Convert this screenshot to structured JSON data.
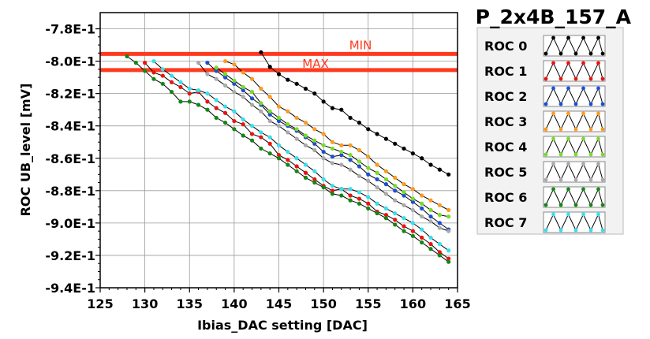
{
  "chart_data": {
    "type": "line",
    "title": "P_2x4B_157_A",
    "xlabel": "Ibias_DAC setting [DAC]",
    "ylabel": "ROC UB_level [mV]",
    "xlim": [
      125,
      165
    ],
    "ylim": [
      -0.94,
      -0.77
    ],
    "x_ticks": [
      125,
      130,
      135,
      140,
      145,
      150,
      155,
      160,
      165
    ],
    "x_tick_labels": [
      "125",
      "130",
      "135",
      "140",
      "145",
      "150",
      "155",
      "160",
      "165"
    ],
    "y_ticks": [
      -0.78,
      -0.8,
      -0.82,
      -0.84,
      -0.86,
      -0.88,
      -0.9,
      -0.92,
      -0.94
    ],
    "y_tick_labels": [
      "-7.8E-1",
      "-8.0E-1",
      "-8.2E-1",
      "-8.4E-1",
      "-8.6E-1",
      "-8.8E-1",
      "-9.0E-1",
      "-9.2E-1",
      "-9.4E-1"
    ],
    "grid": true,
    "reference_lines": [
      {
        "name": "MIN",
        "y": -0.7955,
        "color": "#ff3a1f"
      },
      {
        "name": "MAX",
        "y": -0.8055,
        "color": "#ff3a1f"
      }
    ],
    "series": [
      {
        "name": "ROC 0",
        "color": "#000000",
        "x": [
          143,
          144,
          145,
          146,
          147,
          148,
          149,
          150,
          151,
          152,
          153,
          154,
          155,
          156,
          157,
          158,
          159,
          160,
          161,
          162,
          163,
          164
        ],
        "y": [
          -0.7945,
          -0.8035,
          -0.808,
          -0.8115,
          -0.814,
          -0.817,
          -0.82,
          -0.825,
          -0.829,
          -0.83,
          -0.835,
          -0.838,
          -0.842,
          -0.845,
          -0.848,
          -0.851,
          -0.854,
          -0.857,
          -0.86,
          -0.864,
          -0.867,
          -0.87
        ]
      },
      {
        "name": "ROC 1",
        "color": "#ee1111",
        "x": [
          130,
          131,
          132,
          133,
          134,
          135,
          136,
          137,
          138,
          139,
          140,
          141,
          142,
          143,
          144,
          145,
          146,
          147,
          148,
          149,
          150,
          151,
          152,
          153,
          154,
          155,
          156,
          157,
          158,
          159,
          160,
          161,
          162,
          163,
          164
        ],
        "y": [
          -0.801,
          -0.807,
          -0.809,
          -0.813,
          -0.816,
          -0.82,
          -0.819,
          -0.825,
          -0.829,
          -0.832,
          -0.837,
          -0.839,
          -0.845,
          -0.847,
          -0.851,
          -0.858,
          -0.861,
          -0.865,
          -0.869,
          -0.873,
          -0.877,
          -0.88,
          -0.879,
          -0.883,
          -0.885,
          -0.888,
          -0.893,
          -0.895,
          -0.898,
          -0.902,
          -0.905,
          -0.909,
          -0.913,
          -0.918,
          -0.922
        ]
      },
      {
        "name": "ROC 2",
        "color": "#1a4fd6",
        "x": [
          137,
          138,
          139,
          140,
          141,
          142,
          143,
          144,
          145,
          146,
          147,
          148,
          149,
          150,
          151,
          152,
          153,
          154,
          155,
          156,
          157,
          158,
          159,
          160,
          161,
          162,
          163,
          164
        ],
        "y": [
          -0.801,
          -0.806,
          -0.81,
          -0.814,
          -0.818,
          -0.823,
          -0.827,
          -0.833,
          -0.837,
          -0.84,
          -0.843,
          -0.847,
          -0.851,
          -0.856,
          -0.859,
          -0.858,
          -0.861,
          -0.865,
          -0.87,
          -0.873,
          -0.876,
          -0.88,
          -0.883,
          -0.887,
          -0.891,
          -0.896,
          -0.9,
          -0.904
        ]
      },
      {
        "name": "ROC 3",
        "color": "#ff9a1a",
        "x": [
          139,
          140,
          141,
          142,
          143,
          144,
          145,
          146,
          147,
          148,
          149,
          150,
          151,
          152,
          153,
          154,
          155,
          156,
          157,
          158,
          159,
          160,
          161,
          162,
          163,
          164
        ],
        "y": [
          -0.8,
          -0.802,
          -0.807,
          -0.811,
          -0.817,
          -0.822,
          -0.828,
          -0.831,
          -0.835,
          -0.838,
          -0.842,
          -0.845,
          -0.85,
          -0.852,
          -0.852,
          -0.855,
          -0.859,
          -0.864,
          -0.868,
          -0.872,
          -0.876,
          -0.879,
          -0.883,
          -0.886,
          -0.889,
          -0.892
        ]
      },
      {
        "name": "ROC 4",
        "color": "#77dd22",
        "x": [
          138,
          139,
          140,
          141,
          142,
          143,
          144,
          145,
          146,
          147,
          148,
          149,
          150,
          151,
          152,
          153,
          154,
          155,
          156,
          157,
          158,
          159,
          160,
          161,
          162,
          163,
          164
        ],
        "y": [
          -0.804,
          -0.808,
          -0.812,
          -0.816,
          -0.819,
          -0.826,
          -0.831,
          -0.835,
          -0.839,
          -0.842,
          -0.846,
          -0.849,
          -0.852,
          -0.854,
          -0.856,
          -0.858,
          -0.862,
          -0.866,
          -0.869,
          -0.873,
          -0.877,
          -0.881,
          -0.885,
          -0.888,
          -0.892,
          -0.895,
          -0.896
        ]
      },
      {
        "name": "ROC 5",
        "color": "#aaaaaa",
        "x": [
          136,
          137,
          138,
          139,
          140,
          141,
          142,
          143,
          144,
          145,
          146,
          147,
          148,
          149,
          150,
          151,
          152,
          153,
          154,
          155,
          156,
          157,
          158,
          159,
          160,
          161,
          162,
          163,
          164
        ],
        "y": [
          -0.801,
          -0.808,
          -0.811,
          -0.815,
          -0.819,
          -0.822,
          -0.827,
          -0.831,
          -0.837,
          -0.84,
          -0.844,
          -0.848,
          -0.852,
          -0.855,
          -0.86,
          -0.863,
          -0.864,
          -0.867,
          -0.871,
          -0.874,
          -0.878,
          -0.882,
          -0.886,
          -0.889,
          -0.892,
          -0.896,
          -0.899,
          -0.903,
          -0.905
        ]
      },
      {
        "name": "ROC 6",
        "color": "#118811",
        "x": [
          128,
          129,
          130,
          131,
          132,
          133,
          134,
          135,
          136,
          137,
          138,
          139,
          140,
          141,
          142,
          143,
          144,
          145,
          146,
          147,
          148,
          149,
          150,
          151,
          152,
          153,
          154,
          155,
          156,
          157,
          158,
          159,
          160,
          161,
          162,
          163,
          164
        ],
        "y": [
          -0.797,
          -0.801,
          -0.806,
          -0.811,
          -0.814,
          -0.819,
          -0.825,
          -0.825,
          -0.827,
          -0.83,
          -0.835,
          -0.838,
          -0.842,
          -0.846,
          -0.849,
          -0.854,
          -0.857,
          -0.86,
          -0.864,
          -0.868,
          -0.872,
          -0.875,
          -0.878,
          -0.882,
          -0.883,
          -0.886,
          -0.888,
          -0.891,
          -0.894,
          -0.897,
          -0.901,
          -0.905,
          -0.908,
          -0.912,
          -0.916,
          -0.92,
          -0.924
        ]
      },
      {
        "name": "ROC 7",
        "color": "#33e0f0",
        "x": [
          131,
          132,
          133,
          134,
          135,
          136,
          137,
          138,
          139,
          140,
          141,
          142,
          143,
          144,
          145,
          146,
          147,
          148,
          149,
          150,
          151,
          152,
          153,
          154,
          155,
          156,
          157,
          158,
          159,
          160,
          161,
          162,
          163,
          164
        ],
        "y": [
          -0.8,
          -0.805,
          -0.809,
          -0.813,
          -0.817,
          -0.818,
          -0.82,
          -0.824,
          -0.828,
          -0.831,
          -0.836,
          -0.84,
          -0.844,
          -0.847,
          -0.852,
          -0.856,
          -0.86,
          -0.864,
          -0.868,
          -0.873,
          -0.877,
          -0.879,
          -0.879,
          -0.881,
          -0.884,
          -0.888,
          -0.891,
          -0.894,
          -0.897,
          -0.9,
          -0.904,
          -0.909,
          -0.913,
          -0.917
        ]
      }
    ],
    "legend": {
      "placement": "right",
      "entries": [
        "ROC 0",
        "ROC 1",
        "ROC 2",
        "ROC 3",
        "ROC 4",
        "ROC 5",
        "ROC 6",
        "ROC 7"
      ]
    }
  }
}
